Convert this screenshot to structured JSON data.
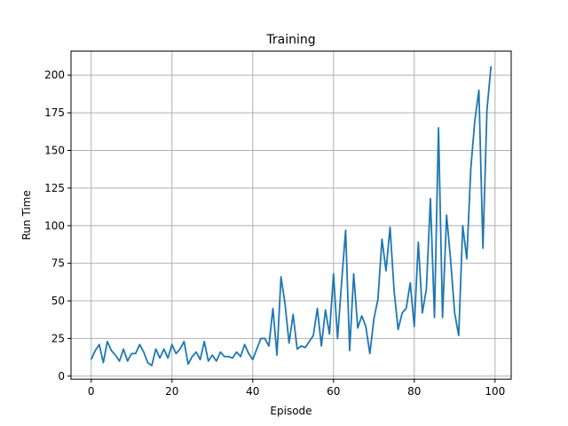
{
  "chart_data": {
    "type": "line",
    "title": "Training",
    "xlabel": "Episode",
    "ylabel": "Run Time",
    "xlim": [
      -5,
      104
    ],
    "ylim": [
      -2,
      216
    ],
    "xticks": [
      0,
      20,
      40,
      60,
      80,
      100
    ],
    "yticks": [
      0,
      25,
      50,
      75,
      100,
      125,
      150,
      175,
      200
    ],
    "grid": true,
    "legend": "none",
    "line_color": "#1f77b4",
    "series": [
      {
        "x": [
          0,
          1,
          2,
          3,
          4,
          5,
          6,
          7,
          8,
          9,
          10,
          11,
          12,
          13,
          14,
          15,
          16,
          17,
          18,
          19,
          20,
          21,
          22,
          23,
          24,
          25,
          26,
          27,
          28,
          29,
          30,
          31,
          32,
          33,
          34,
          35,
          36,
          37,
          38,
          39,
          40,
          41,
          42,
          43,
          44,
          45,
          46,
          47,
          48,
          49,
          50,
          51,
          52,
          53,
          54,
          55,
          56,
          57,
          58,
          59,
          60,
          61,
          62,
          63,
          64,
          65,
          66,
          67,
          68,
          69,
          70,
          71,
          72,
          73,
          74,
          75,
          76,
          77,
          78,
          79,
          80,
          81,
          82,
          83,
          84,
          85,
          86,
          87,
          88,
          89,
          90,
          91,
          92,
          93,
          94,
          95,
          96,
          97,
          98,
          99
        ],
        "values": [
          11,
          17,
          21,
          9,
          23,
          17,
          14,
          10,
          18,
          10,
          15,
          15,
          21,
          16,
          9,
          7,
          18,
          12,
          18,
          12,
          21,
          15,
          18,
          23,
          8,
          13,
          16,
          11,
          23,
          10,
          14,
          10,
          16,
          13,
          13,
          12,
          16,
          13,
          21,
          15,
          11,
          18,
          25,
          25,
          20,
          45,
          14,
          66,
          48,
          22,
          41,
          18,
          20,
          19,
          23,
          27,
          45,
          20,
          44,
          28,
          68,
          25,
          62,
          97,
          17,
          68,
          32,
          40,
          33,
          15,
          38,
          51,
          91,
          70,
          99,
          57,
          31,
          42,
          45,
          62,
          33,
          89,
          42,
          58,
          118,
          39,
          165,
          39,
          107,
          77,
          42,
          27,
          100,
          78,
          138,
          170,
          190,
          85,
          177,
          206
        ]
      }
    ]
  }
}
